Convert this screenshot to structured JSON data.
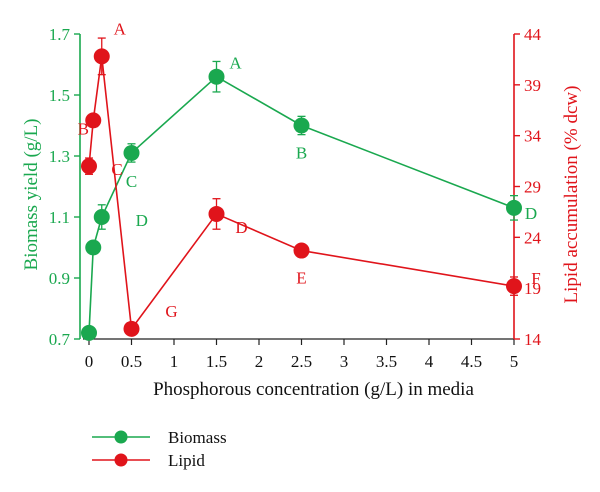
{
  "chart_data": {
    "type": "line",
    "xlabel": "Phosphorous concentration (g/L) in media",
    "ylabel_left": "Biomass yield (g/L)",
    "ylabel_right": "Lipid accumulation (% dcw)",
    "x_ticks": [
      "0",
      "0.5",
      "1",
      "1.5",
      "2",
      "2.5",
      "3",
      "3.5",
      "4",
      "4.5",
      "5"
    ],
    "xlim": [
      0,
      5
    ],
    "y_left_ticks": [
      "0.7",
      "0.9",
      "1.1",
      "1.3",
      "1.5",
      "1.7"
    ],
    "y_left_lim": [
      0.7,
      1.7
    ],
    "y_right_ticks": [
      "14",
      "19",
      "24",
      "29",
      "34",
      "39",
      "44"
    ],
    "y_right_lim": [
      14,
      44
    ],
    "colors": {
      "biomass": "#1aa84f",
      "lipid": "#e0141b"
    },
    "legend_position": "bottom-left",
    "series": [
      {
        "name": "Biomass",
        "axis": "left",
        "x": [
          0,
          0.05,
          0.15,
          0.5,
          1.5,
          2.5,
          5
        ],
        "y": [
          0.72,
          1.0,
          1.1,
          1.31,
          1.56,
          1.4,
          1.13
        ],
        "err": [
          0.01,
          0.02,
          0.04,
          0.03,
          0.05,
          0.03,
          0.04
        ],
        "labels": [
          "",
          "",
          "D",
          "C",
          "A",
          "B",
          "D"
        ]
      },
      {
        "name": "Lipid",
        "axis": "right",
        "x": [
          0,
          0.05,
          0.15,
          0.5,
          1.5,
          2.5,
          5
        ],
        "y": [
          31,
          35.5,
          41.8,
          15,
          26.3,
          22.7,
          19.2
        ],
        "err": [
          0.8,
          0.6,
          1.8,
          0.4,
          1.5,
          0.5,
          0.9
        ],
        "labels": [
          "C",
          "B",
          "A",
          "G",
          "D",
          "E",
          "F"
        ]
      }
    ]
  }
}
